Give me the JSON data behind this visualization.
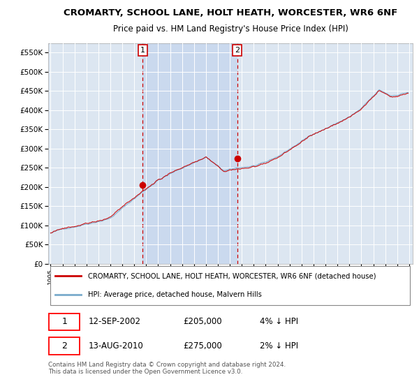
{
  "title": "CROMARTY, SCHOOL LANE, HOLT HEATH, WORCESTER, WR6 6NF",
  "subtitle": "Price paid vs. HM Land Registry's House Price Index (HPI)",
  "legend_line1": "CROMARTY, SCHOOL LANE, HOLT HEATH, WORCESTER, WR6 6NF (detached house)",
  "legend_line2": "HPI: Average price, detached house, Malvern Hills",
  "footer": "Contains HM Land Registry data © Crown copyright and database right 2024.\nThis data is licensed under the Open Government Licence v3.0.",
  "sale1_date": "12-SEP-2002",
  "sale1_price": "£205,000",
  "sale1_hpi": "4% ↓ HPI",
  "sale1_year": 2002.71,
  "sale1_value": 205000,
  "sale2_date": "13-AUG-2010",
  "sale2_price": "£275,000",
  "sale2_hpi": "2% ↓ HPI",
  "sale2_year": 2010.62,
  "sale2_value": 275000,
  "ylim_max": 575000,
  "xlim_start": 1994.8,
  "xlim_end": 2025.3,
  "bg_color": "#dce6f1",
  "red_color": "#cc0000",
  "blue_color": "#7aabcc",
  "grid_color": "#ffffff",
  "shade_color": "#c8d8ee"
}
